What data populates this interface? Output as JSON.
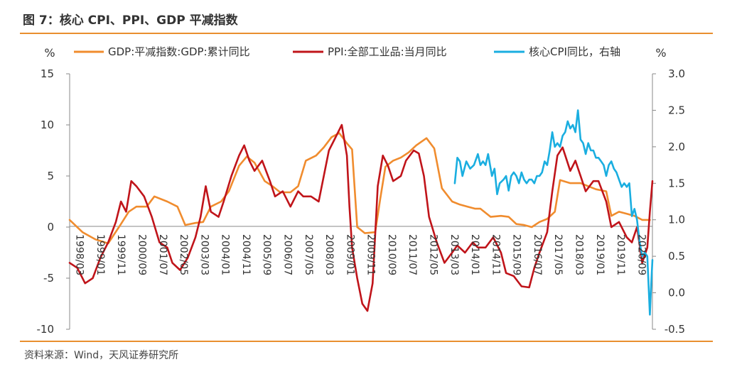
{
  "title": "图 7：核心 CPI、PPI、GDP 平减指数",
  "source": "资料来源：Wind，天风证券研究所",
  "chart_data": {
    "type": "line",
    "left_unit": "%",
    "right_unit": "%",
    "left_axis": {
      "ylim": [
        -10,
        15
      ],
      "ticks": [
        "-10",
        "-5",
        "0",
        "5",
        "10",
        "15"
      ]
    },
    "right_axis": {
      "ylim": [
        -0.5,
        3.0
      ],
      "ticks": [
        "-0.5",
        "0.0",
        "0.5",
        "1.0",
        "1.5",
        "2.0",
        "2.5",
        "3.0"
      ]
    },
    "x_range": [
      1998.0,
      2020.7
    ],
    "x_ticks": [
      "1998/03",
      "1999/01",
      "1999/11",
      "2000/09",
      "2001/07",
      "2002/05",
      "2003/03",
      "2004/01",
      "2004/11",
      "2005/09",
      "2006/07",
      "2007/05",
      "2008/03",
      "2009/01",
      "2009/11",
      "2010/09",
      "2011/07",
      "2012/05",
      "2013/03",
      "2014/01",
      "2014/11",
      "2015/09",
      "2016/07",
      "2017/05",
      "2018/03",
      "2019/01",
      "2019/11",
      "2020/09"
    ],
    "legend_position": "top",
    "grid": false,
    "colors": {
      "gdp": "#f08c2e",
      "ppi": "#c0141a",
      "cpi": "#1aaee0"
    },
    "series": [
      {
        "name": "GDP:平减指数:GDP:累计同比",
        "axis": "left",
        "points": [
          [
            1998.0,
            0.7
          ],
          [
            1998.5,
            -0.5
          ],
          [
            1999.0,
            -1.2
          ],
          [
            1999.5,
            -1.6
          ],
          [
            2000.0,
            0.3
          ],
          [
            2000.3,
            1.5
          ],
          [
            2000.6,
            2.0
          ],
          [
            2001.0,
            2.0
          ],
          [
            2001.3,
            3.0
          ],
          [
            2001.8,
            2.5
          ],
          [
            2002.2,
            2.0
          ],
          [
            2002.5,
            0.2
          ],
          [
            2002.9,
            0.4
          ],
          [
            2003.2,
            0.5
          ],
          [
            2003.5,
            2.0
          ],
          [
            2003.9,
            2.5
          ],
          [
            2004.2,
            3.5
          ],
          [
            2004.6,
            6.0
          ],
          [
            2004.9,
            6.9
          ],
          [
            2005.2,
            6.3
          ],
          [
            2005.6,
            4.5
          ],
          [
            2005.9,
            4.0
          ],
          [
            2006.2,
            3.4
          ],
          [
            2006.6,
            3.4
          ],
          [
            2006.9,
            4.0
          ],
          [
            2007.2,
            6.5
          ],
          [
            2007.6,
            7.0
          ],
          [
            2007.9,
            7.8
          ],
          [
            2008.2,
            8.8
          ],
          [
            2008.5,
            9.2
          ],
          [
            2008.8,
            8.2
          ],
          [
            2009.0,
            7.6
          ],
          [
            2009.2,
            0.0
          ],
          [
            2009.5,
            -0.6
          ],
          [
            2009.9,
            -0.5
          ],
          [
            2010.1,
            2.8
          ],
          [
            2010.3,
            5.9
          ],
          [
            2010.6,
            6.5
          ],
          [
            2010.9,
            6.8
          ],
          [
            2011.2,
            7.3
          ],
          [
            2011.5,
            8.0
          ],
          [
            2011.9,
            8.7
          ],
          [
            2012.2,
            7.7
          ],
          [
            2012.5,
            3.8
          ],
          [
            2012.9,
            2.5
          ],
          [
            2013.2,
            2.2
          ],
          [
            2013.5,
            2.0
          ],
          [
            2013.8,
            1.8
          ],
          [
            2014.0,
            1.8
          ],
          [
            2014.4,
            1.0
          ],
          [
            2014.8,
            1.1
          ],
          [
            2015.1,
            1.0
          ],
          [
            2015.4,
            0.3
          ],
          [
            2015.7,
            0.2
          ],
          [
            2016.0,
            0.0
          ],
          [
            2016.3,
            0.5
          ],
          [
            2016.6,
            0.8
          ],
          [
            2016.9,
            1.5
          ],
          [
            2017.1,
            4.6
          ],
          [
            2017.5,
            4.3
          ],
          [
            2017.9,
            4.3
          ],
          [
            2018.2,
            4.0
          ],
          [
            2018.5,
            3.7
          ],
          [
            2018.9,
            3.5
          ],
          [
            2019.1,
            1.1
          ],
          [
            2019.4,
            1.5
          ],
          [
            2019.7,
            1.3
          ],
          [
            2020.0,
            1.1
          ],
          [
            2020.3,
            0.7
          ],
          [
            2020.6,
            0.7
          ]
        ]
      },
      {
        "name": "PPI:全部工业品:当月同比",
        "axis": "left",
        "points": [
          [
            1998.0,
            -3.5
          ],
          [
            1998.3,
            -4.0
          ],
          [
            1998.6,
            -5.5
          ],
          [
            1998.9,
            -5.0
          ],
          [
            1999.2,
            -3.0
          ],
          [
            1999.5,
            -1.5
          ],
          [
            1999.8,
            0.5
          ],
          [
            2000.0,
            2.5
          ],
          [
            2000.2,
            1.5
          ],
          [
            2000.4,
            4.5
          ],
          [
            2000.6,
            4.0
          ],
          [
            2000.9,
            3.0
          ],
          [
            2001.2,
            1.0
          ],
          [
            2001.5,
            -1.5
          ],
          [
            2001.8,
            -2.0
          ],
          [
            2002.0,
            -3.5
          ],
          [
            2002.3,
            -4.2
          ],
          [
            2002.6,
            -3.0
          ],
          [
            2002.9,
            -1.0
          ],
          [
            2003.1,
            1.0
          ],
          [
            2003.3,
            4.0
          ],
          [
            2003.5,
            1.5
          ],
          [
            2003.8,
            1.0
          ],
          [
            2004.0,
            2.5
          ],
          [
            2004.3,
            5.0
          ],
          [
            2004.6,
            7.0
          ],
          [
            2004.8,
            8.0
          ],
          [
            2005.0,
            6.5
          ],
          [
            2005.2,
            5.5
          ],
          [
            2005.5,
            6.5
          ],
          [
            2005.8,
            4.5
          ],
          [
            2006.0,
            3.0
          ],
          [
            2006.3,
            3.5
          ],
          [
            2006.6,
            2.0
          ],
          [
            2006.9,
            3.5
          ],
          [
            2007.1,
            3.0
          ],
          [
            2007.4,
            3.0
          ],
          [
            2007.7,
            2.5
          ],
          [
            2007.9,
            5.0
          ],
          [
            2008.1,
            7.5
          ],
          [
            2008.3,
            8.5
          ],
          [
            2008.5,
            9.5
          ],
          [
            2008.6,
            10.0
          ],
          [
            2008.8,
            7.0
          ],
          [
            2008.9,
            2.0
          ],
          [
            2009.0,
            -2.0
          ],
          [
            2009.2,
            -5.0
          ],
          [
            2009.4,
            -7.5
          ],
          [
            2009.6,
            -8.2
          ],
          [
            2009.8,
            -5.5
          ],
          [
            2010.0,
            4.0
          ],
          [
            2010.2,
            7.0
          ],
          [
            2010.4,
            6.0
          ],
          [
            2010.6,
            4.5
          ],
          [
            2010.9,
            5.0
          ],
          [
            2011.1,
            6.5
          ],
          [
            2011.4,
            7.5
          ],
          [
            2011.6,
            7.2
          ],
          [
            2011.8,
            5.0
          ],
          [
            2012.0,
            1.0
          ],
          [
            2012.3,
            -1.5
          ],
          [
            2012.6,
            -3.5
          ],
          [
            2012.9,
            -2.5
          ],
          [
            2013.1,
            -1.8
          ],
          [
            2013.4,
            -2.5
          ],
          [
            2013.7,
            -1.5
          ],
          [
            2013.9,
            -2.0
          ],
          [
            2014.2,
            -2.0
          ],
          [
            2014.5,
            -1.0
          ],
          [
            2014.8,
            -2.5
          ],
          [
            2015.0,
            -4.5
          ],
          [
            2015.3,
            -4.8
          ],
          [
            2015.6,
            -5.8
          ],
          [
            2015.9,
            -5.9
          ],
          [
            2016.1,
            -4.0
          ],
          [
            2016.3,
            -2.5
          ],
          [
            2016.6,
            -0.5
          ],
          [
            2016.8,
            3.5
          ],
          [
            2017.0,
            7.0
          ],
          [
            2017.2,
            7.8
          ],
          [
            2017.5,
            5.5
          ],
          [
            2017.7,
            6.5
          ],
          [
            2017.9,
            5.0
          ],
          [
            2018.1,
            3.5
          ],
          [
            2018.4,
            4.5
          ],
          [
            2018.6,
            4.5
          ],
          [
            2018.9,
            2.5
          ],
          [
            2019.1,
            0.0
          ],
          [
            2019.4,
            0.5
          ],
          [
            2019.7,
            -1.0
          ],
          [
            2019.9,
            -1.5
          ],
          [
            2020.1,
            0.0
          ],
          [
            2020.3,
            -3.5
          ],
          [
            2020.5,
            -2.0
          ],
          [
            2020.6,
            1.5
          ],
          [
            2020.7,
            4.5
          ]
        ]
      },
      {
        "name": "核心CPI同比，右轴",
        "axis": "right",
        "points": [
          [
            2013.0,
            1.5
          ],
          [
            2013.1,
            1.85
          ],
          [
            2013.2,
            1.8
          ],
          [
            2013.3,
            1.6
          ],
          [
            2013.45,
            1.8
          ],
          [
            2013.6,
            1.7
          ],
          [
            2013.75,
            1.75
          ],
          [
            2013.9,
            1.9
          ],
          [
            2014.0,
            1.75
          ],
          [
            2014.1,
            1.8
          ],
          [
            2014.2,
            1.75
          ],
          [
            2014.3,
            1.9
          ],
          [
            2014.45,
            1.6
          ],
          [
            2014.55,
            1.7
          ],
          [
            2014.65,
            1.35
          ],
          [
            2014.75,
            1.5
          ],
          [
            2014.9,
            1.55
          ],
          [
            2015.0,
            1.6
          ],
          [
            2015.1,
            1.4
          ],
          [
            2015.2,
            1.6
          ],
          [
            2015.3,
            1.65
          ],
          [
            2015.4,
            1.6
          ],
          [
            2015.5,
            1.5
          ],
          [
            2015.6,
            1.65
          ],
          [
            2015.7,
            1.55
          ],
          [
            2015.8,
            1.5
          ],
          [
            2015.9,
            1.55
          ],
          [
            2016.0,
            1.55
          ],
          [
            2016.1,
            1.5
          ],
          [
            2016.2,
            1.6
          ],
          [
            2016.3,
            1.6
          ],
          [
            2016.4,
            1.65
          ],
          [
            2016.5,
            1.8
          ],
          [
            2016.6,
            1.75
          ],
          [
            2016.7,
            1.95
          ],
          [
            2016.8,
            2.2
          ],
          [
            2016.9,
            2.0
          ],
          [
            2017.0,
            2.05
          ],
          [
            2017.1,
            2.0
          ],
          [
            2017.2,
            2.15
          ],
          [
            2017.3,
            2.2
          ],
          [
            2017.4,
            2.35
          ],
          [
            2017.5,
            2.25
          ],
          [
            2017.6,
            2.3
          ],
          [
            2017.7,
            2.2
          ],
          [
            2017.8,
            2.5
          ],
          [
            2017.9,
            2.1
          ],
          [
            2018.0,
            2.05
          ],
          [
            2018.1,
            1.9
          ],
          [
            2018.2,
            2.05
          ],
          [
            2018.3,
            1.95
          ],
          [
            2018.4,
            1.95
          ],
          [
            2018.5,
            1.85
          ],
          [
            2018.6,
            1.85
          ],
          [
            2018.7,
            1.8
          ],
          [
            2018.8,
            1.75
          ],
          [
            2018.9,
            1.6
          ],
          [
            2019.0,
            1.75
          ],
          [
            2019.1,
            1.8
          ],
          [
            2019.2,
            1.7
          ],
          [
            2019.3,
            1.65
          ],
          [
            2019.4,
            1.55
          ],
          [
            2019.5,
            1.45
          ],
          [
            2019.6,
            1.5
          ],
          [
            2019.7,
            1.45
          ],
          [
            2019.8,
            1.5
          ],
          [
            2019.9,
            1.05
          ],
          [
            2020.0,
            1.15
          ],
          [
            2020.1,
            1.0
          ],
          [
            2020.2,
            0.7
          ],
          [
            2020.3,
            0.5
          ],
          [
            2020.4,
            0.55
          ],
          [
            2020.5,
            0.5
          ],
          [
            2020.6,
            -0.3
          ],
          [
            2020.65,
            0.1
          ],
          [
            2020.7,
            0.45
          ]
        ]
      }
    ]
  }
}
